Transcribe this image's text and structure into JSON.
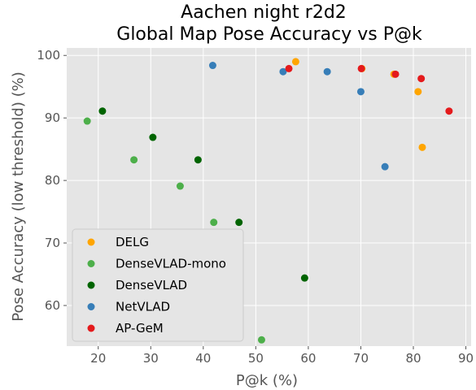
{
  "chart_data": {
    "type": "scatter",
    "title_line1": "Aachen night r2d2",
    "title_line2": "Global Map Pose Accuracy vs P@k",
    "xlabel": "P@k (%)",
    "ylabel": "Pose Accuracy (low threshold) (%)",
    "xlim": [
      14,
      91
    ],
    "ylim": [
      53.5,
      101.2
    ],
    "xticks": [
      20,
      30,
      40,
      50,
      60,
      70,
      80,
      90
    ],
    "yticks": [
      60,
      70,
      80,
      90,
      100
    ],
    "grid": true,
    "legend_position": "lower-left",
    "series": [
      {
        "name": "DELG",
        "color": "#ffa500",
        "points": [
          [
            57.6,
            99.0
          ],
          [
            70.2,
            97.9
          ],
          [
            76.3,
            97.0
          ],
          [
            80.9,
            94.2
          ],
          [
            81.7,
            85.3
          ]
        ]
      },
      {
        "name": "DenseVLAD-mono",
        "color": "#4daf4a",
        "points": [
          [
            17.9,
            89.5
          ],
          [
            26.8,
            83.3
          ],
          [
            35.6,
            79.1
          ],
          [
            42.0,
            73.3
          ],
          [
            51.1,
            54.5
          ]
        ]
      },
      {
        "name": "DenseVLAD",
        "color": "#006400",
        "points": [
          [
            20.8,
            91.1
          ],
          [
            30.4,
            86.9
          ],
          [
            39.0,
            83.3
          ],
          [
            46.8,
            73.3
          ],
          [
            59.3,
            64.4
          ]
        ]
      },
      {
        "name": "NetVLAD",
        "color": "#377eb8",
        "points": [
          [
            41.8,
            98.4
          ],
          [
            55.2,
            97.4
          ],
          [
            63.6,
            97.4
          ],
          [
            70.0,
            94.2
          ],
          [
            74.6,
            82.2
          ]
        ]
      },
      {
        "name": "AP-GeM",
        "color": "#e41a1c",
        "points": [
          [
            56.3,
            97.9
          ],
          [
            70.1,
            97.9
          ],
          [
            76.6,
            97.0
          ],
          [
            81.5,
            96.3
          ],
          [
            86.8,
            91.1
          ]
        ]
      }
    ]
  }
}
